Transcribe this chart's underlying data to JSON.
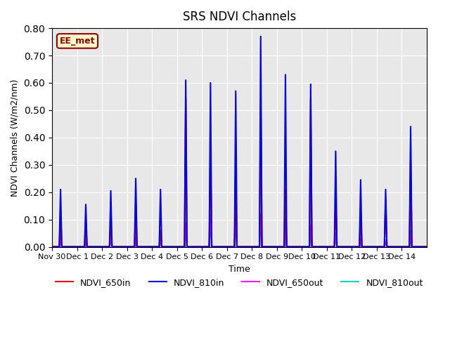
{
  "title": "SRS NDVI Channels",
  "ylabel": "NDVI Channels (W/m2/nm)",
  "xlabel": "Time",
  "annotation": "EE_met",
  "ylim": [
    0.0,
    0.8
  ],
  "yticks": [
    0.0,
    0.1,
    0.2,
    0.3,
    0.4,
    0.5,
    0.6,
    0.7,
    0.8
  ],
  "xtick_positions": [
    0,
    1,
    2,
    3,
    4,
    5,
    6,
    7,
    8,
    9,
    10,
    11,
    12,
    13,
    14
  ],
  "xtick_labels": [
    "Nov 30",
    "Dec 1",
    "Dec 2",
    "Dec 3",
    "Dec 4",
    "Dec 5",
    "Dec 6",
    "Dec 7",
    "Dec 8",
    "Dec 9",
    "Dec 10",
    "Dec 11",
    "Dec 12",
    "Dec 13",
    "Dec 14"
  ],
  "background_color": "#e8e8e8",
  "n_days": 15,
  "legend": [
    {
      "label": "NDVI_650in",
      "color": "#dd0000",
      "lw": 1.5
    },
    {
      "label": "NDVI_810in",
      "color": "#0000dd",
      "lw": 1.5
    },
    {
      "label": "NDVI_650out",
      "color": "#ff00ff",
      "lw": 1.5
    },
    {
      "label": "NDVI_810out",
      "color": "#00cccc",
      "lw": 1.5
    }
  ],
  "peaks_650in": [
    0.13,
    0.1,
    0.095,
    0.16,
    0.06,
    0.55,
    0.36,
    0.22,
    0.54,
    0.21,
    0.54,
    0.18,
    0.13,
    0.17,
    0.32
  ],
  "peaks_810in": [
    0.21,
    0.155,
    0.205,
    0.25,
    0.21,
    0.61,
    0.6,
    0.57,
    0.77,
    0.63,
    0.595,
    0.35,
    0.245,
    0.21,
    0.44
  ],
  "peaks_650out": [
    0.03,
    0.02,
    0.025,
    0.03,
    0.025,
    0.08,
    0.115,
    0.115,
    0.12,
    0.09,
    0.08,
    0.05,
    0.025,
    0.02,
    0.05
  ],
  "peaks_810out": [
    0.04,
    0.025,
    0.03,
    0.035,
    0.03,
    0.09,
    0.1,
    0.1,
    0.11,
    0.09,
    0.07,
    0.045,
    0.03,
    0.025,
    0.06
  ]
}
